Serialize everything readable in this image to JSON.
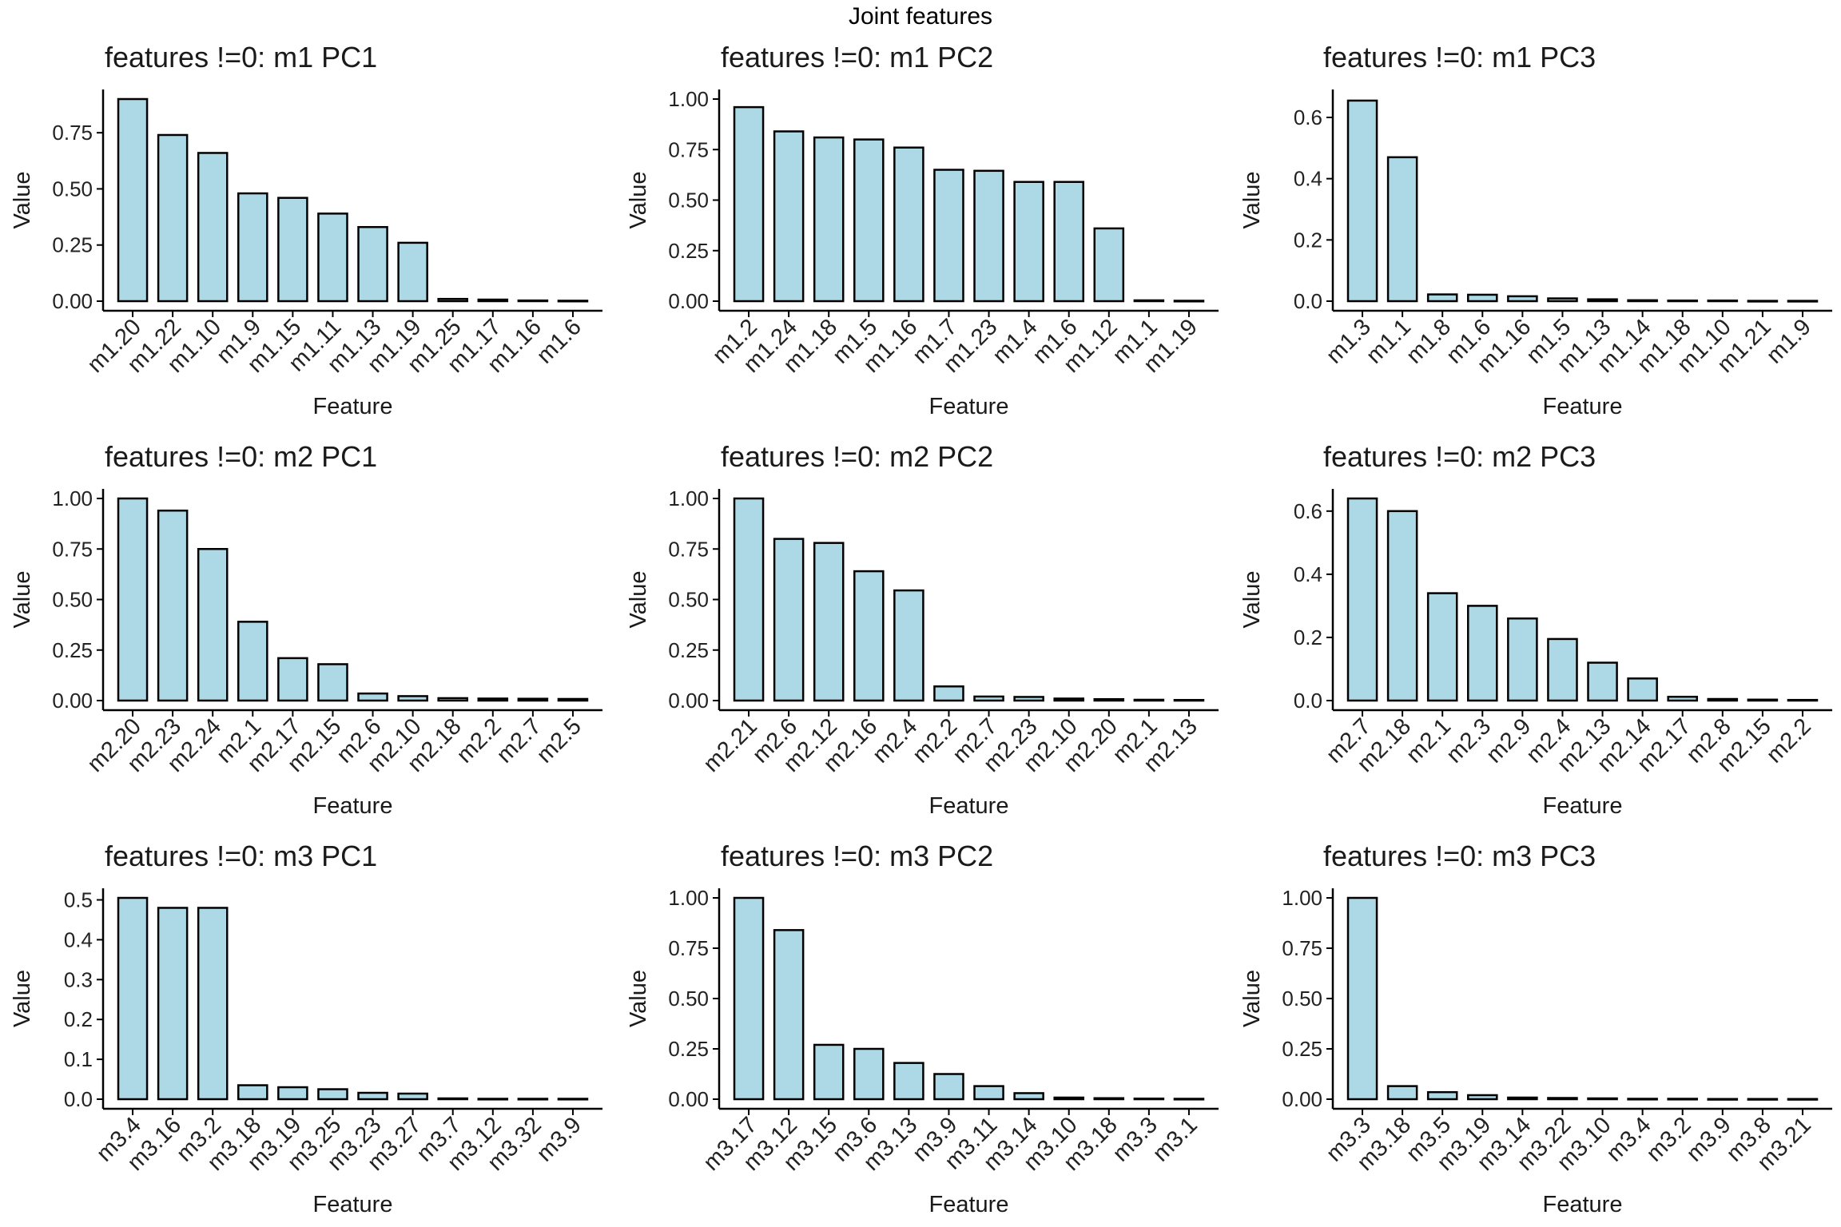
{
  "figure": {
    "title": "Joint features"
  },
  "colors": {
    "bar_fill": "#add8e6",
    "bar_stroke": "#000000",
    "axis": "#000000",
    "text": "#1a1a1a"
  },
  "chart_data": [
    {
      "type": "bar",
      "title": "features !=0: m1 PC1",
      "xlabel": "Feature",
      "ylabel": "Value",
      "ylim": [
        0,
        0.9
      ],
      "yticks": [
        0.0,
        0.25,
        0.5,
        0.75
      ],
      "ytick_labels": [
        "0.00",
        "0.25",
        "0.50",
        "0.75"
      ],
      "categories": [
        "m1.20",
        "m1.22",
        "m1.10",
        "m1.9",
        "m1.15",
        "m1.11",
        "m1.13",
        "m1.19",
        "m1.25",
        "m1.17",
        "m1.16",
        "m1.6"
      ],
      "values": [
        0.9,
        0.74,
        0.66,
        0.48,
        0.46,
        0.39,
        0.33,
        0.26,
        0.01,
        0.007,
        0.003,
        0.002
      ]
    },
    {
      "type": "bar",
      "title": "features !=0: m1 PC2",
      "xlabel": "Feature",
      "ylabel": "Value",
      "ylim": [
        0,
        1.0
      ],
      "yticks": [
        0.0,
        0.25,
        0.5,
        0.75,
        1.0
      ],
      "ytick_labels": [
        "0.00",
        "0.25",
        "0.50",
        "0.75",
        "1.00"
      ],
      "categories": [
        "m1.2",
        "m1.24",
        "m1.18",
        "m1.5",
        "m1.16",
        "m1.7",
        "m1.23",
        "m1.4",
        "m1.6",
        "m1.12",
        "m1.1",
        "m1.19"
      ],
      "values": [
        0.96,
        0.84,
        0.81,
        0.8,
        0.76,
        0.65,
        0.645,
        0.59,
        0.59,
        0.36,
        0.004,
        0.002
      ]
    },
    {
      "type": "bar",
      "title": "features !=0: m1 PC3",
      "xlabel": "Feature",
      "ylabel": "Value",
      "ylim": [
        0,
        0.66
      ],
      "yticks": [
        0.0,
        0.2,
        0.4,
        0.6
      ],
      "ytick_labels": [
        "0.0",
        "0.2",
        "0.4",
        "0.6"
      ],
      "categories": [
        "m1.3",
        "m1.1",
        "m1.8",
        "m1.6",
        "m1.16",
        "m1.5",
        "m1.13",
        "m1.14",
        "m1.18",
        "m1.10",
        "m1.21",
        "m1.9"
      ],
      "values": [
        0.655,
        0.47,
        0.022,
        0.021,
        0.016,
        0.009,
        0.006,
        0.003,
        0.002,
        0.002,
        0.001,
        0.001
      ]
    },
    {
      "type": "bar",
      "title": "features !=0: m2 PC1",
      "xlabel": "Feature",
      "ylabel": "Value",
      "ylim": [
        0,
        1.0
      ],
      "yticks": [
        0.0,
        0.25,
        0.5,
        0.75,
        1.0
      ],
      "ytick_labels": [
        "0.00",
        "0.25",
        "0.50",
        "0.75",
        "1.00"
      ],
      "categories": [
        "m2.20",
        "m2.23",
        "m2.24",
        "m2.1",
        "m2.17",
        "m2.15",
        "m2.6",
        "m2.10",
        "m2.18",
        "m2.2",
        "m2.7",
        "m2.5"
      ],
      "values": [
        1.0,
        0.94,
        0.75,
        0.39,
        0.21,
        0.18,
        0.035,
        0.022,
        0.012,
        0.01,
        0.009,
        0.008
      ]
    },
    {
      "type": "bar",
      "title": "features !=0: m2 PC2",
      "xlabel": "Feature",
      "ylabel": "Value",
      "ylim": [
        0,
        1.0
      ],
      "yticks": [
        0.0,
        0.25,
        0.5,
        0.75,
        1.0
      ],
      "ytick_labels": [
        "0.00",
        "0.25",
        "0.50",
        "0.75",
        "1.00"
      ],
      "categories": [
        "m2.21",
        "m2.6",
        "m2.12",
        "m2.16",
        "m2.4",
        "m2.2",
        "m2.7",
        "m2.23",
        "m2.10",
        "m2.20",
        "m2.1",
        "m2.13"
      ],
      "values": [
        1.0,
        0.8,
        0.78,
        0.64,
        0.545,
        0.07,
        0.02,
        0.018,
        0.01,
        0.007,
        0.004,
        0.003
      ]
    },
    {
      "type": "bar",
      "title": "features !=0: m2 PC3",
      "xlabel": "Feature",
      "ylabel": "Value",
      "ylim": [
        0,
        0.64
      ],
      "yticks": [
        0.0,
        0.2,
        0.4,
        0.6
      ],
      "ytick_labels": [
        "0.0",
        "0.2",
        "0.4",
        "0.6"
      ],
      "categories": [
        "m2.7",
        "m2.18",
        "m2.1",
        "m2.3",
        "m2.9",
        "m2.4",
        "m2.13",
        "m2.14",
        "m2.17",
        "m2.8",
        "m2.15",
        "m2.2"
      ],
      "values": [
        0.64,
        0.6,
        0.34,
        0.3,
        0.26,
        0.195,
        0.12,
        0.07,
        0.012,
        0.005,
        0.003,
        0.002
      ]
    },
    {
      "type": "bar",
      "title": "features !=0: m3 PC1",
      "xlabel": "Feature",
      "ylabel": "Value",
      "ylim": [
        0,
        0.505
      ],
      "yticks": [
        0.0,
        0.1,
        0.2,
        0.3,
        0.4,
        0.5
      ],
      "ytick_labels": [
        "0.0",
        "0.1",
        "0.2",
        "0.3",
        "0.4",
        "0.5"
      ],
      "categories": [
        "m3.4",
        "m3.16",
        "m3.2",
        "m3.18",
        "m3.19",
        "m3.25",
        "m3.23",
        "m3.27",
        "m3.7",
        "m3.12",
        "m3.32",
        "m3.9"
      ],
      "values": [
        0.505,
        0.48,
        0.48,
        0.035,
        0.03,
        0.025,
        0.016,
        0.014,
        0.002,
        0.001,
        0.001,
        0.001
      ]
    },
    {
      "type": "bar",
      "title": "features !=0: m3 PC2",
      "xlabel": "Feature",
      "ylabel": "Value",
      "ylim": [
        0,
        1.0
      ],
      "yticks": [
        0.0,
        0.25,
        0.5,
        0.75,
        1.0
      ],
      "ytick_labels": [
        "0.00",
        "0.25",
        "0.50",
        "0.75",
        "1.00"
      ],
      "categories": [
        "m3.17",
        "m3.12",
        "m3.15",
        "m3.6",
        "m3.13",
        "m3.9",
        "m3.11",
        "m3.14",
        "m3.10",
        "m3.18",
        "m3.3",
        "m3.1"
      ],
      "values": [
        1.0,
        0.84,
        0.27,
        0.25,
        0.18,
        0.125,
        0.065,
        0.03,
        0.008,
        0.005,
        0.003,
        0.002
      ]
    },
    {
      "type": "bar",
      "title": "features !=0: m3 PC3",
      "xlabel": "Feature",
      "ylabel": "Value",
      "ylim": [
        0,
        1.0
      ],
      "yticks": [
        0.0,
        0.25,
        0.5,
        0.75,
        1.0
      ],
      "ytick_labels": [
        "0.00",
        "0.25",
        "0.50",
        "0.75",
        "1.00"
      ],
      "categories": [
        "m3.3",
        "m3.18",
        "m3.5",
        "m3.19",
        "m3.14",
        "m3.22",
        "m3.10",
        "m3.4",
        "m3.2",
        "m3.9",
        "m3.8",
        "m3.21"
      ],
      "values": [
        1.0,
        0.065,
        0.035,
        0.02,
        0.008,
        0.006,
        0.004,
        0.002,
        0.002,
        0.001,
        0.001,
        0.001
      ]
    }
  ]
}
